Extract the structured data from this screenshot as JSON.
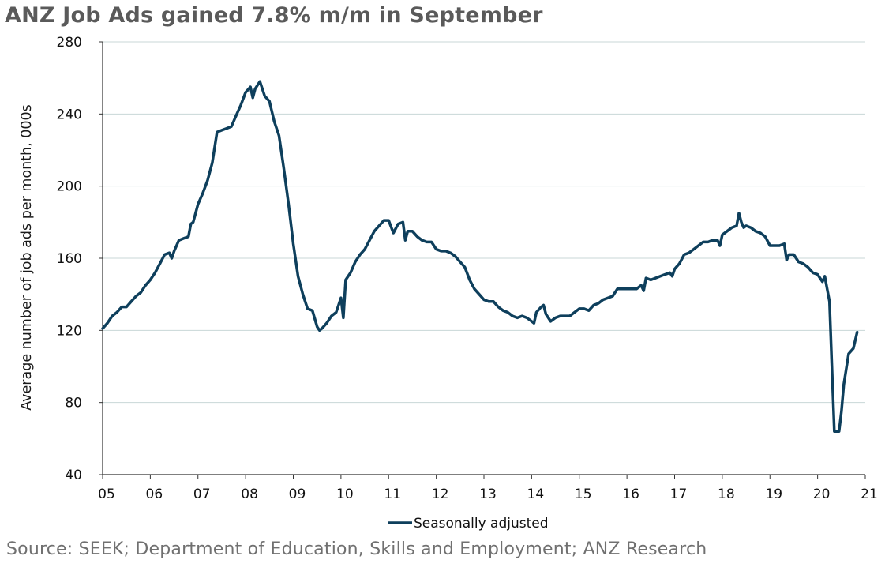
{
  "title": "ANZ Job Ads gained 7.8% m/m in September",
  "source": "Source: SEEK; Department of Education, Skills and Employment; ANZ Research",
  "colors": {
    "line": "#0e3f5c",
    "grid": "#c8d7d7",
    "axis": "#333333",
    "title": "#5a5a5a"
  },
  "chart_data": {
    "type": "line",
    "title": "ANZ Job Ads gained 7.8% m/m in September",
    "ylabel": "Average number of job ads per month, 000s",
    "xlabel": "",
    "ylim": [
      40,
      280
    ],
    "yticks": [
      40,
      80,
      120,
      160,
      200,
      240,
      280
    ],
    "xlim": [
      2005.0,
      2021.0
    ],
    "xticks": [
      {
        "x": 2005,
        "label": "05"
      },
      {
        "x": 2006,
        "label": "06"
      },
      {
        "x": 2007,
        "label": "07"
      },
      {
        "x": 2008,
        "label": "08"
      },
      {
        "x": 2009,
        "label": "09"
      },
      {
        "x": 2010,
        "label": "10"
      },
      {
        "x": 2011,
        "label": "11"
      },
      {
        "x": 2012,
        "label": "12"
      },
      {
        "x": 2013,
        "label": "13"
      },
      {
        "x": 2014,
        "label": "14"
      },
      {
        "x": 2015,
        "label": "15"
      },
      {
        "x": 2016,
        "label": "16"
      },
      {
        "x": 2017,
        "label": "17"
      },
      {
        "x": 2018,
        "label": "18"
      },
      {
        "x": 2019,
        "label": "19"
      },
      {
        "x": 2020,
        "label": "20"
      },
      {
        "x": 2021,
        "label": "21"
      }
    ],
    "grid": "horizontal",
    "legend_position": "bottom-center",
    "series": [
      {
        "name": "Seasonally adjusted",
        "points": [
          [
            2005.0,
            121
          ],
          [
            2005.1,
            124
          ],
          [
            2005.2,
            128
          ],
          [
            2005.3,
            130
          ],
          [
            2005.4,
            133
          ],
          [
            2005.5,
            133
          ],
          [
            2005.6,
            136
          ],
          [
            2005.7,
            139
          ],
          [
            2005.8,
            141
          ],
          [
            2005.9,
            145
          ],
          [
            2006.0,
            148
          ],
          [
            2006.1,
            152
          ],
          [
            2006.2,
            157
          ],
          [
            2006.3,
            162
          ],
          [
            2006.4,
            163
          ],
          [
            2006.45,
            160
          ],
          [
            2006.5,
            164
          ],
          [
            2006.6,
            170
          ],
          [
            2006.7,
            171
          ],
          [
            2006.8,
            172
          ],
          [
            2006.85,
            179
          ],
          [
            2006.9,
            180
          ],
          [
            2007.0,
            190
          ],
          [
            2007.1,
            196
          ],
          [
            2007.2,
            203
          ],
          [
            2007.3,
            213
          ],
          [
            2007.4,
            230
          ],
          [
            2007.5,
            231
          ],
          [
            2007.6,
            232
          ],
          [
            2007.7,
            233
          ],
          [
            2007.8,
            239
          ],
          [
            2007.9,
            245
          ],
          [
            2008.0,
            252
          ],
          [
            2008.1,
            255
          ],
          [
            2008.15,
            249
          ],
          [
            2008.2,
            254
          ],
          [
            2008.3,
            258
          ],
          [
            2008.4,
            250
          ],
          [
            2008.5,
            247
          ],
          [
            2008.6,
            236
          ],
          [
            2008.7,
            228
          ],
          [
            2008.8,
            210
          ],
          [
            2008.9,
            190
          ],
          [
            2009.0,
            168
          ],
          [
            2009.1,
            150
          ],
          [
            2009.2,
            140
          ],
          [
            2009.3,
            132
          ],
          [
            2009.4,
            131
          ],
          [
            2009.5,
            122
          ],
          [
            2009.55,
            120
          ],
          [
            2009.6,
            121
          ],
          [
            2009.7,
            124
          ],
          [
            2009.8,
            128
          ],
          [
            2009.9,
            130
          ],
          [
            2010.0,
            138
          ],
          [
            2010.05,
            127
          ],
          [
            2010.1,
            148
          ],
          [
            2010.2,
            152
          ],
          [
            2010.3,
            158
          ],
          [
            2010.4,
            162
          ],
          [
            2010.5,
            165
          ],
          [
            2010.6,
            170
          ],
          [
            2010.7,
            175
          ],
          [
            2010.8,
            178
          ],
          [
            2010.9,
            181
          ],
          [
            2011.0,
            181
          ],
          [
            2011.1,
            174
          ],
          [
            2011.2,
            179
          ],
          [
            2011.3,
            180
          ],
          [
            2011.35,
            170
          ],
          [
            2011.4,
            175
          ],
          [
            2011.5,
            175
          ],
          [
            2011.6,
            172
          ],
          [
            2011.7,
            170
          ],
          [
            2011.8,
            169
          ],
          [
            2011.9,
            169
          ],
          [
            2012.0,
            165
          ],
          [
            2012.1,
            164
          ],
          [
            2012.2,
            164
          ],
          [
            2012.3,
            163
          ],
          [
            2012.4,
            161
          ],
          [
            2012.5,
            158
          ],
          [
            2012.6,
            155
          ],
          [
            2012.7,
            148
          ],
          [
            2012.8,
            143
          ],
          [
            2012.9,
            140
          ],
          [
            2013.0,
            137
          ],
          [
            2013.1,
            136
          ],
          [
            2013.2,
            136
          ],
          [
            2013.3,
            133
          ],
          [
            2013.4,
            131
          ],
          [
            2013.5,
            130
          ],
          [
            2013.6,
            128
          ],
          [
            2013.7,
            127
          ],
          [
            2013.8,
            128
          ],
          [
            2013.9,
            127
          ],
          [
            2014.0,
            125
          ],
          [
            2014.05,
            124
          ],
          [
            2014.1,
            130
          ],
          [
            2014.2,
            133
          ],
          [
            2014.25,
            134
          ],
          [
            2014.3,
            129
          ],
          [
            2014.4,
            125
          ],
          [
            2014.5,
            127
          ],
          [
            2014.6,
            128
          ],
          [
            2014.7,
            128
          ],
          [
            2014.8,
            128
          ],
          [
            2014.9,
            130
          ],
          [
            2015.0,
            132
          ],
          [
            2015.1,
            132
          ],
          [
            2015.2,
            131
          ],
          [
            2015.3,
            134
          ],
          [
            2015.4,
            135
          ],
          [
            2015.5,
            137
          ],
          [
            2015.6,
            138
          ],
          [
            2015.7,
            139
          ],
          [
            2015.8,
            143
          ],
          [
            2015.9,
            143
          ],
          [
            2016.0,
            143
          ],
          [
            2016.1,
            143
          ],
          [
            2016.2,
            143
          ],
          [
            2016.3,
            145
          ],
          [
            2016.35,
            142
          ],
          [
            2016.4,
            149
          ],
          [
            2016.5,
            148
          ],
          [
            2016.6,
            149
          ],
          [
            2016.7,
            150
          ],
          [
            2016.8,
            151
          ],
          [
            2016.9,
            152
          ],
          [
            2016.95,
            150
          ],
          [
            2017.0,
            154
          ],
          [
            2017.1,
            157
          ],
          [
            2017.2,
            162
          ],
          [
            2017.3,
            163
          ],
          [
            2017.4,
            165
          ],
          [
            2017.5,
            167
          ],
          [
            2017.6,
            169
          ],
          [
            2017.7,
            169
          ],
          [
            2017.8,
            170
          ],
          [
            2017.9,
            170
          ],
          [
            2017.95,
            167
          ],
          [
            2018.0,
            173
          ],
          [
            2018.1,
            175
          ],
          [
            2018.2,
            177
          ],
          [
            2018.3,
            178
          ],
          [
            2018.35,
            185
          ],
          [
            2018.4,
            180
          ],
          [
            2018.45,
            177
          ],
          [
            2018.5,
            178
          ],
          [
            2018.6,
            177
          ],
          [
            2018.7,
            175
          ],
          [
            2018.8,
            174
          ],
          [
            2018.9,
            172
          ],
          [
            2019.0,
            167
          ],
          [
            2019.1,
            167
          ],
          [
            2019.2,
            167
          ],
          [
            2019.3,
            168
          ],
          [
            2019.35,
            159
          ],
          [
            2019.4,
            162
          ],
          [
            2019.5,
            162
          ],
          [
            2019.6,
            158
          ],
          [
            2019.7,
            157
          ],
          [
            2019.8,
            155
          ],
          [
            2019.9,
            152
          ],
          [
            2020.0,
            151
          ],
          [
            2020.1,
            147
          ],
          [
            2020.15,
            150
          ],
          [
            2020.25,
            136
          ],
          [
            2020.3,
            100
          ],
          [
            2020.35,
            64
          ],
          [
            2020.45,
            64
          ],
          [
            2020.5,
            75
          ],
          [
            2020.55,
            90
          ],
          [
            2020.65,
            107
          ],
          [
            2020.75,
            110
          ],
          [
            2020.83,
            119
          ]
        ]
      }
    ]
  }
}
